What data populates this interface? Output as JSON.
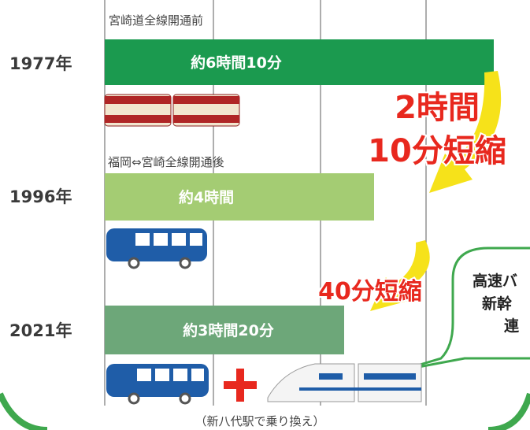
{
  "notes": {
    "before": "宮崎道全線開通前",
    "after": "福岡⇔宮崎全線開通後",
    "transfer": "（新八代駅で乗り換え）"
  },
  "rows": [
    {
      "year": "1977年",
      "time": "約6時間10分"
    },
    {
      "year": "1996年",
      "time": "約4時間"
    },
    {
      "year": "2021年",
      "time": "約3時間20分"
    }
  ],
  "savings": {
    "first_line1": "2時間",
    "first_line2": "10分短縮",
    "second": "40分短縮"
  },
  "bubble": {
    "line1": "高速バ",
    "line2": "新幹",
    "line3": "連"
  }
}
